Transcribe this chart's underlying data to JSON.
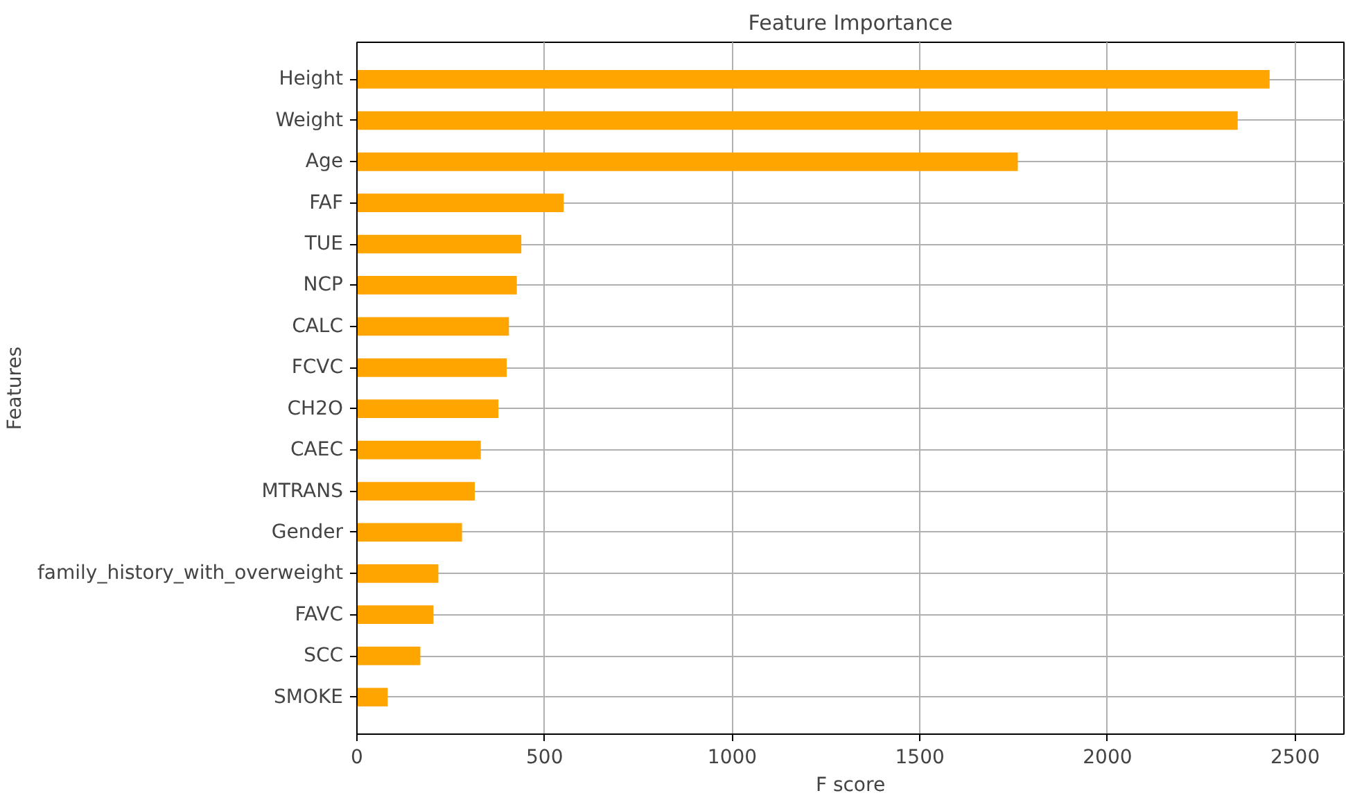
{
  "chart_data": {
    "type": "bar",
    "orientation": "horizontal",
    "title": "Feature Importance",
    "xlabel": "F score",
    "ylabel": "Features",
    "categories": [
      "Height",
      "Weight",
      "Age",
      "FAF",
      "TUE",
      "NCP",
      "CALC",
      "FCVC",
      "CH2O",
      "CAEC",
      "MTRANS",
      "Gender",
      "family_history_with_overweight",
      "FAVC",
      "SCC",
      "SMOKE"
    ],
    "values": [
      2432,
      2347,
      1761,
      551,
      438,
      426,
      405,
      399,
      377,
      330,
      314,
      280,
      217,
      204,
      169,
      82
    ],
    "color": "#ffa500",
    "xlim": [
      0,
      2630
    ],
    "xticks": [
      0,
      500,
      1000,
      1500,
      2000,
      2500
    ],
    "grid": true
  }
}
